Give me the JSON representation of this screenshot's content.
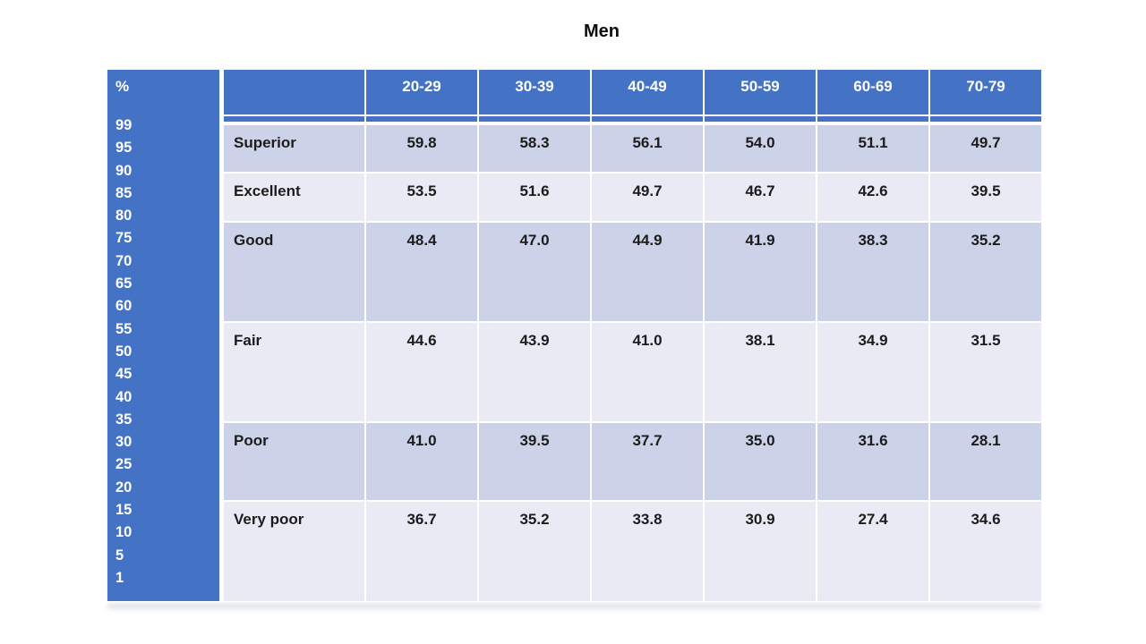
{
  "chart_data": {
    "type": "table",
    "title": "Men",
    "percent_scale": {
      "header": "%",
      "ticks": [
        "99",
        "95",
        "90",
        "85",
        "80",
        "75",
        "70",
        "65",
        "60",
        "55",
        "50",
        "45",
        "40",
        "35",
        "30",
        "25",
        "20",
        "15",
        "10",
        "5",
        "1"
      ]
    },
    "columns": [
      "20-29",
      "30-39",
      "40-49",
      "50-59",
      "60-69",
      "70-79"
    ],
    "rows": [
      {
        "label": "Superior",
        "values": [
          "59.8",
          "58.3",
          "56.1",
          "54.0",
          "51.1",
          "49.7"
        ]
      },
      {
        "label": "Excellent",
        "values": [
          "53.5",
          "51.6",
          "49.7",
          "46.7",
          "42.6",
          "39.5"
        ]
      },
      {
        "label": "Good",
        "values": [
          "48.4",
          "47.0",
          "44.9",
          "41.9",
          "38.3",
          "35.2"
        ]
      },
      {
        "label": "Fair",
        "values": [
          "44.6",
          "43.9",
          "41.0",
          "38.1",
          "34.9",
          "31.5"
        ]
      },
      {
        "label": "Poor",
        "values": [
          "41.0",
          "39.5",
          "37.7",
          "35.0",
          "31.6",
          "28.1"
        ]
      },
      {
        "label": "Very poor",
        "values": [
          "36.7",
          "35.2",
          "33.8",
          "30.9",
          "27.4",
          "34.6"
        ]
      }
    ],
    "colors": {
      "header_bg": "#4472c4",
      "band_dark": "#ccd3e9",
      "band_light": "#e9eaf4",
      "header_text": "#ffffff",
      "body_text": "#1c1c1c"
    },
    "layout_hints": {
      "legend": "none",
      "grid": "white cell separators",
      "banding": "rows alternate dark/light lavender"
    }
  }
}
